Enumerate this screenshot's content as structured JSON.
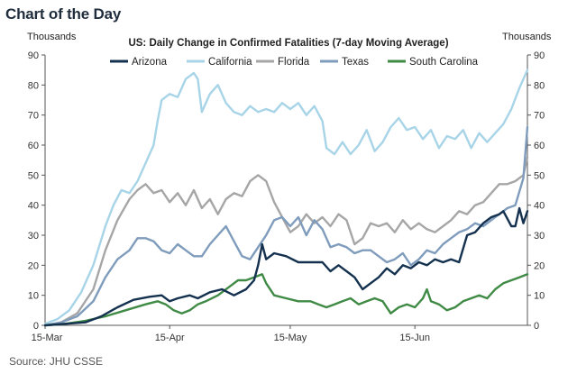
{
  "header": {
    "title": "Chart of the Day",
    "source": "Source: JHU CSSE"
  },
  "chart_data": {
    "type": "line",
    "title": "US: Daily Change in Confirmed Fatalities (7-day Moving Average)",
    "left_unit": "Thousands",
    "right_unit": "Thousands",
    "ylim": [
      0,
      90
    ],
    "yticks": [
      0,
      10,
      20,
      30,
      40,
      50,
      60,
      70,
      80,
      90
    ],
    "x_range_days": [
      0,
      120
    ],
    "x_ticks": [
      {
        "label": "15-Mar",
        "day": 0
      },
      {
        "label": "15-Apr",
        "day": 31
      },
      {
        "label": "15-May",
        "day": 61
      },
      {
        "label": "15-Jun",
        "day": 92
      }
    ],
    "legend_position": "top",
    "series": [
      {
        "name": "Arizona",
        "color": "#14314f",
        "points": [
          [
            0,
            0
          ],
          [
            5,
            0.5
          ],
          [
            10,
            1
          ],
          [
            14,
            3
          ],
          [
            18,
            6
          ],
          [
            22,
            8.5
          ],
          [
            26,
            9.5
          ],
          [
            29,
            10
          ],
          [
            31,
            8
          ],
          [
            33,
            9
          ],
          [
            36,
            10
          ],
          [
            38,
            9
          ],
          [
            41,
            11
          ],
          [
            44,
            12
          ],
          [
            47,
            10
          ],
          [
            50,
            12
          ],
          [
            52,
            15
          ],
          [
            53,
            20
          ],
          [
            54,
            27
          ],
          [
            55,
            22
          ],
          [
            57,
            24
          ],
          [
            60,
            23
          ],
          [
            63,
            21
          ],
          [
            66,
            21
          ],
          [
            69,
            21
          ],
          [
            71,
            18
          ],
          [
            73,
            20
          ],
          [
            75,
            18
          ],
          [
            77,
            16
          ],
          [
            79,
            12
          ],
          [
            81,
            14
          ],
          [
            83,
            16
          ],
          [
            85,
            19
          ],
          [
            87,
            17
          ],
          [
            89,
            20
          ],
          [
            91,
            19
          ],
          [
            93,
            21
          ],
          [
            95,
            20
          ],
          [
            97,
            22
          ],
          [
            99,
            21
          ],
          [
            101,
            22
          ],
          [
            103,
            21
          ],
          [
            105,
            30
          ],
          [
            107,
            31
          ],
          [
            109,
            34
          ],
          [
            111,
            36
          ],
          [
            113,
            37
          ],
          [
            114,
            38
          ],
          [
            116,
            33
          ],
          [
            117,
            33
          ],
          [
            118,
            39
          ],
          [
            119,
            34
          ],
          [
            120,
            38
          ]
        ]
      },
      {
        "name": "California",
        "color": "#a8d4e8",
        "points": [
          [
            0,
            0.5
          ],
          [
            3,
            2
          ],
          [
            6,
            5
          ],
          [
            9,
            11
          ],
          [
            12,
            20
          ],
          [
            15,
            33
          ],
          [
            17,
            40
          ],
          [
            19,
            45
          ],
          [
            21,
            44
          ],
          [
            23,
            48
          ],
          [
            25,
            54
          ],
          [
            27,
            60
          ],
          [
            28,
            68
          ],
          [
            29,
            75
          ],
          [
            31,
            77
          ],
          [
            33,
            76
          ],
          [
            35,
            82
          ],
          [
            37,
            84
          ],
          [
            38,
            82
          ],
          [
            39,
            71
          ],
          [
            41,
            77
          ],
          [
            43,
            80
          ],
          [
            45,
            74
          ],
          [
            47,
            71
          ],
          [
            49,
            70
          ],
          [
            51,
            73
          ],
          [
            53,
            71
          ],
          [
            55,
            72
          ],
          [
            57,
            71
          ],
          [
            59,
            74
          ],
          [
            61,
            72
          ],
          [
            63,
            74
          ],
          [
            65,
            70
          ],
          [
            67,
            73
          ],
          [
            69,
            68
          ],
          [
            70,
            59
          ],
          [
            72,
            57
          ],
          [
            74,
            61
          ],
          [
            76,
            57
          ],
          [
            78,
            60
          ],
          [
            80,
            65
          ],
          [
            82,
            58
          ],
          [
            84,
            61
          ],
          [
            86,
            66
          ],
          [
            88,
            69
          ],
          [
            90,
            65
          ],
          [
            92,
            66
          ],
          [
            94,
            62
          ],
          [
            96,
            65
          ],
          [
            98,
            59
          ],
          [
            100,
            63
          ],
          [
            102,
            62
          ],
          [
            104,
            65
          ],
          [
            106,
            59
          ],
          [
            108,
            64
          ],
          [
            110,
            61
          ],
          [
            112,
            64
          ],
          [
            114,
            67
          ],
          [
            116,
            72
          ],
          [
            118,
            79
          ],
          [
            120,
            85
          ]
        ]
      },
      {
        "name": "Florida",
        "color": "#a6a6a6",
        "points": [
          [
            0,
            0
          ],
          [
            4,
            1
          ],
          [
            8,
            4
          ],
          [
            12,
            12
          ],
          [
            15,
            25
          ],
          [
            18,
            35
          ],
          [
            21,
            42
          ],
          [
            23,
            45
          ],
          [
            25,
            47
          ],
          [
            27,
            44
          ],
          [
            29,
            45
          ],
          [
            31,
            41
          ],
          [
            33,
            44
          ],
          [
            35,
            40
          ],
          [
            37,
            45
          ],
          [
            39,
            39
          ],
          [
            41,
            42
          ],
          [
            43,
            37
          ],
          [
            45,
            42
          ],
          [
            47,
            44
          ],
          [
            49,
            43
          ],
          [
            51,
            48
          ],
          [
            53,
            50
          ],
          [
            55,
            48
          ],
          [
            57,
            41
          ],
          [
            59,
            36
          ],
          [
            61,
            31
          ],
          [
            63,
            33
          ],
          [
            65,
            37
          ],
          [
            67,
            34
          ],
          [
            69,
            36
          ],
          [
            71,
            33
          ],
          [
            73,
            37
          ],
          [
            75,
            35
          ],
          [
            77,
            27
          ],
          [
            79,
            29
          ],
          [
            81,
            34
          ],
          [
            83,
            33
          ],
          [
            85,
            34
          ],
          [
            87,
            31
          ],
          [
            89,
            35
          ],
          [
            91,
            32
          ],
          [
            93,
            34
          ],
          [
            95,
            32
          ],
          [
            97,
            31
          ],
          [
            99,
            33
          ],
          [
            101,
            35
          ],
          [
            103,
            38
          ],
          [
            105,
            37
          ],
          [
            107,
            40
          ],
          [
            109,
            41
          ],
          [
            111,
            44
          ],
          [
            113,
            47
          ],
          [
            115,
            47
          ],
          [
            117,
            48
          ],
          [
            119,
            50
          ],
          [
            120,
            56
          ]
        ]
      },
      {
        "name": "Texas",
        "color": "#7f9cbc",
        "points": [
          [
            0,
            0
          ],
          [
            4,
            1
          ],
          [
            8,
            3
          ],
          [
            12,
            8
          ],
          [
            15,
            16
          ],
          [
            18,
            22
          ],
          [
            21,
            25
          ],
          [
            23,
            29
          ],
          [
            25,
            29
          ],
          [
            27,
            28
          ],
          [
            29,
            25
          ],
          [
            31,
            24
          ],
          [
            33,
            27
          ],
          [
            35,
            25
          ],
          [
            37,
            23
          ],
          [
            39,
            23
          ],
          [
            41,
            27
          ],
          [
            43,
            30
          ],
          [
            45,
            33
          ],
          [
            47,
            28
          ],
          [
            49,
            23
          ],
          [
            51,
            22
          ],
          [
            53,
            26
          ],
          [
            55,
            30
          ],
          [
            57,
            35
          ],
          [
            59,
            36
          ],
          [
            61,
            33
          ],
          [
            63,
            36
          ],
          [
            65,
            30
          ],
          [
            67,
            35
          ],
          [
            69,
            32
          ],
          [
            71,
            26
          ],
          [
            73,
            27
          ],
          [
            75,
            26
          ],
          [
            77,
            24
          ],
          [
            79,
            25
          ],
          [
            81,
            25
          ],
          [
            83,
            23
          ],
          [
            85,
            21
          ],
          [
            87,
            22
          ],
          [
            89,
            24
          ],
          [
            91,
            20
          ],
          [
            93,
            22
          ],
          [
            95,
            25
          ],
          [
            97,
            24
          ],
          [
            99,
            27
          ],
          [
            101,
            29
          ],
          [
            103,
            31
          ],
          [
            105,
            32
          ],
          [
            107,
            34
          ],
          [
            109,
            33
          ],
          [
            111,
            35
          ],
          [
            113,
            37
          ],
          [
            115,
            39
          ],
          [
            117,
            40
          ],
          [
            119,
            49
          ],
          [
            120,
            66
          ]
        ]
      },
      {
        "name": "South Carolina",
        "color": "#3f8a45",
        "points": [
          [
            0,
            0
          ],
          [
            5,
            0.5
          ],
          [
            10,
            1.5
          ],
          [
            15,
            3
          ],
          [
            20,
            5
          ],
          [
            25,
            7
          ],
          [
            28,
            8
          ],
          [
            30,
            7
          ],
          [
            32,
            5
          ],
          [
            34,
            4
          ],
          [
            36,
            5
          ],
          [
            38,
            7
          ],
          [
            40,
            8
          ],
          [
            43,
            10
          ],
          [
            46,
            13
          ],
          [
            48,
            15
          ],
          [
            50,
            15
          ],
          [
            52,
            16
          ],
          [
            54,
            17
          ],
          [
            55,
            14
          ],
          [
            57,
            10
          ],
          [
            60,
            9
          ],
          [
            63,
            8
          ],
          [
            66,
            8
          ],
          [
            68,
            7
          ],
          [
            70,
            6
          ],
          [
            72,
            7
          ],
          [
            74,
            8
          ],
          [
            76,
            9
          ],
          [
            78,
            7
          ],
          [
            80,
            8
          ],
          [
            82,
            9
          ],
          [
            84,
            8
          ],
          [
            86,
            4
          ],
          [
            88,
            6
          ],
          [
            90,
            7
          ],
          [
            92,
            6
          ],
          [
            94,
            9
          ],
          [
            95,
            12
          ],
          [
            96,
            8
          ],
          [
            98,
            7
          ],
          [
            100,
            5
          ],
          [
            102,
            6
          ],
          [
            104,
            8
          ],
          [
            106,
            9
          ],
          [
            108,
            10
          ],
          [
            110,
            9
          ],
          [
            112,
            12
          ],
          [
            114,
            14
          ],
          [
            116,
            15
          ],
          [
            118,
            16
          ],
          [
            120,
            17
          ]
        ]
      }
    ]
  }
}
